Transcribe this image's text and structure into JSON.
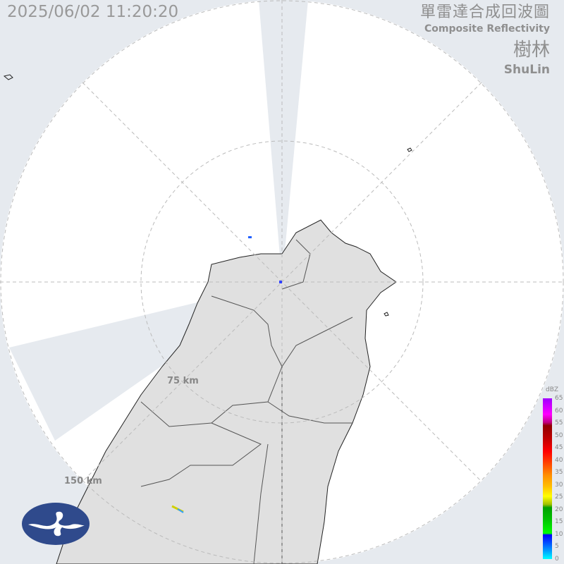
{
  "header": {
    "timestamp": "2025/06/02 11:20:20",
    "title_zh": "單雷達合成回波圖",
    "title_en": "Composite Reflectivity",
    "station_zh": "樹林",
    "station_en": "ShuLin"
  },
  "range_rings": {
    "inner": "75 km",
    "outer": "150 km"
  },
  "legend": {
    "unit": "dBZ",
    "ticks": [
      "65",
      "60",
      "55",
      "50",
      "45",
      "40",
      "35",
      "30",
      "25",
      "20",
      "15",
      "10",
      "5",
      "0"
    ]
  },
  "logo": {
    "name": "cwa-logo-icon"
  },
  "colors": {
    "background": "#e6eaef",
    "land": "#e0e0e0",
    "coverage": "#ffffff",
    "accent_logo": "#2f4a8c"
  }
}
